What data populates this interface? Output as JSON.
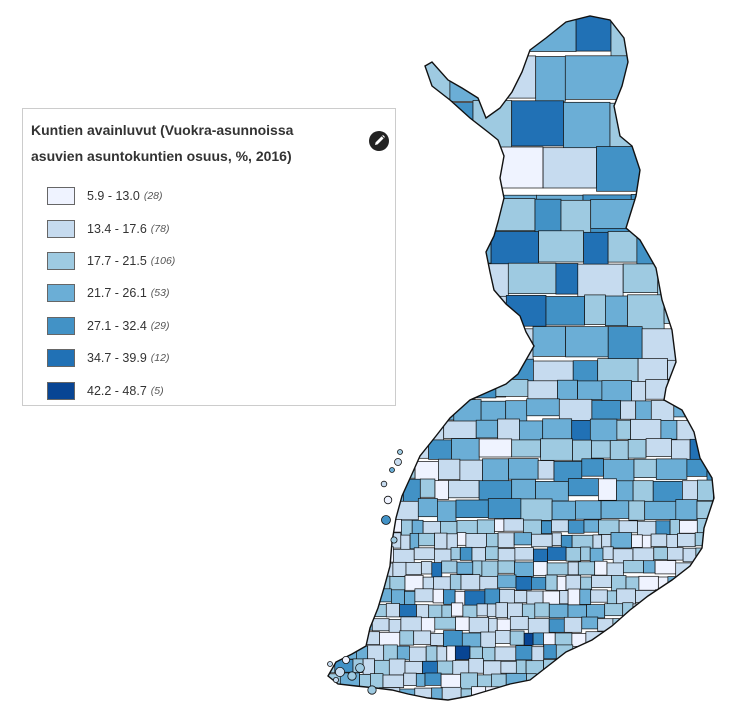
{
  "legend": {
    "title_line1": "Kuntien avainluvut (Vuokra-asunnoissa",
    "title_line2": "asuvien asuntokuntien osuus, %, 2016)",
    "edit_icon": "pencil-icon",
    "classes": [
      {
        "range": "5.9 - 13.0",
        "count": "(28)",
        "color": "#eff3ff"
      },
      {
        "range": "13.4 - 17.6",
        "count": "(78)",
        "color": "#c6dbef"
      },
      {
        "range": "17.7 - 21.5",
        "count": "(106)",
        "color": "#9ecae1"
      },
      {
        "range": "21.7 - 26.1",
        "count": "(53)",
        "color": "#6baed6"
      },
      {
        "range": "27.1 - 32.4",
        "count": "(29)",
        "color": "#4292c6"
      },
      {
        "range": "34.7 - 39.9",
        "count": "(12)",
        "color": "#2171b5"
      },
      {
        "range": "42.2 - 48.7",
        "count": "(5)",
        "color": "#084594"
      }
    ]
  },
  "map": {
    "border_color": "#111111"
  }
}
